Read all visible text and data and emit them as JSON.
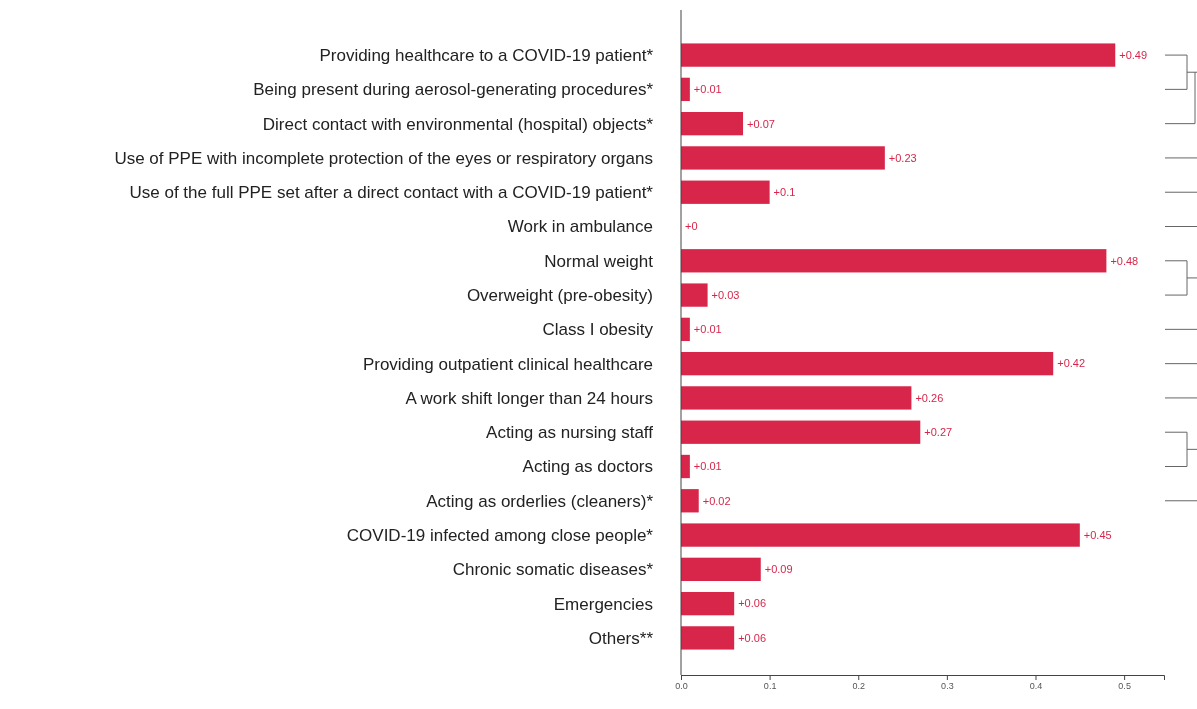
{
  "chart_data": {
    "type": "bar",
    "orientation": "horizontal",
    "categories": [
      "Providing healthcare to a COVID-19 patient*",
      "Being present during aerosol-generating procedures*",
      "Direct contact with environmental (hospital) objects*",
      "Use of PPE with incomplete protection of the eyes or respiratory organs",
      "Use of the full PPE set after a direct contact with a COVID-19 patient*",
      "Work in ambulance",
      "Normal weight",
      "Overweight (pre-obesity)",
      "Class I obesity",
      "Providing outpatient clinical healthcare",
      "A work shift longer than 24 hours",
      "Acting as nursing staff",
      "Acting as doctors",
      "Acting as orderlies (cleaners)*",
      "COVID-19 infected among close people*",
      "Chronic somatic diseases*",
      "Emergencies",
      "Others**"
    ],
    "values": [
      0.49,
      0.01,
      0.07,
      0.23,
      0.1,
      0,
      0.48,
      0.03,
      0.01,
      0.42,
      0.26,
      0.27,
      0.01,
      0.02,
      0.45,
      0.09,
      0.06,
      0.06
    ],
    "value_labels": [
      "+0.49",
      "+0.01",
      "+0.07",
      "+0.23",
      "+0.1",
      "+0",
      "+0.48",
      "+0.03",
      "+0.01",
      "+0.42",
      "+0.26",
      "+0.27",
      "+0.01",
      "+0.02",
      "+0.45",
      "+0.09",
      "+0.06",
      "+0.06"
    ],
    "color": "#d7264a",
    "xlim": [
      0,
      0.545
    ],
    "xticks": [
      {
        "value": 0,
        "label": "0.0"
      },
      0.1,
      0.2,
      0.3,
      0.4,
      0.5
    ]
  }
}
